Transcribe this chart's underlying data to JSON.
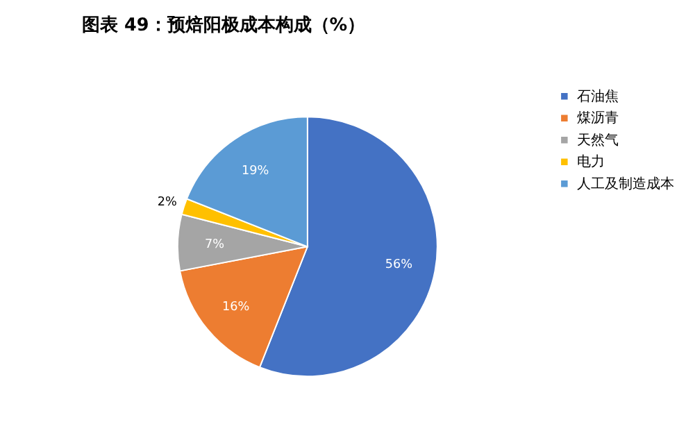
{
  "chart_data": {
    "type": "pie",
    "title": "图表 49：预焙阳极成本构成（%）",
    "categories": [
      "石油焦",
      "煤沥青",
      "天然气",
      "电力",
      "人工及制造成本"
    ],
    "values": [
      56,
      16,
      7,
      2,
      19
    ],
    "colors": [
      "#4472c4",
      "#ed7d31",
      "#a5a5a5",
      "#ffc000",
      "#5b9bd5"
    ],
    "value_labels": [
      "56%",
      "16%",
      "7%",
      "2%",
      "19%"
    ],
    "legend": "right"
  }
}
